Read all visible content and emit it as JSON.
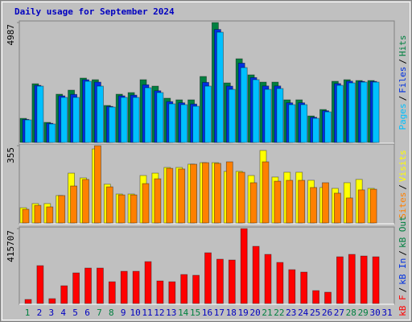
{
  "chart_data": {
    "type": "bar",
    "title": "Daily usage for September 2024",
    "categories": [
      "1",
      "2",
      "3",
      "4",
      "5",
      "6",
      "7",
      "8",
      "9",
      "10",
      "11",
      "12",
      "13",
      "14",
      "15",
      "16",
      "17",
      "18",
      "19",
      "20",
      "21",
      "22",
      "23",
      "24",
      "25",
      "26",
      "27",
      "28",
      "29",
      "30",
      "31"
    ],
    "category_colors": [
      "#008040",
      "#0000c0",
      "#0000c0",
      "#0000c0",
      "#0000c0",
      "#0000c0",
      "#008040",
      "#008040",
      "#0000c0",
      "#0000c0",
      "#0000c0",
      "#0000c0",
      "#0000c0",
      "#008040",
      "#008040",
      "#0000c0",
      "#0000c0",
      "#0000c0",
      "#0000c0",
      "#0000c0",
      "#008040",
      "#008040",
      "#0000c0",
      "#0000c0",
      "#0000c0",
      "#0000c0",
      "#0000c0",
      "#008040",
      "#008040",
      "#0000c0",
      "#0000c0"
    ],
    "legend_separator": "/",
    "panels": [
      {
        "ylim": [
          0,
          4987
        ],
        "yticks": [
          4987
        ],
        "series": [
          {
            "name": "Pages",
            "color": "#00c0ff",
            "values": [
              938,
              2343,
              770,
              1874,
              1874,
              2544,
              2343,
              1473,
              1874,
              1874,
              2276,
              2075,
              1607,
              1573,
              1506,
              2343,
              4585,
              2209,
              3113,
              2611,
              2209,
              2243,
              1573,
              1573,
              1004,
              1272,
              2376,
              2477,
              2510,
              2510,
              null
            ]
          },
          {
            "name": "Files",
            "color": "#0030e0",
            "values": [
              960,
              2376,
              800,
              1941,
              2000,
              2611,
              2510,
              1500,
              1941,
              1970,
              2400,
              2150,
              1700,
              1650,
              1600,
              2500,
              4700,
              2343,
              3300,
              2700,
              2350,
              2350,
              1650,
              1650,
              1050,
              1320,
              2450,
              2550,
              2540,
              2540,
              null
            ]
          },
          {
            "name": "Hits",
            "color": "#008040",
            "values": [
              1004,
              2443,
              837,
              2008,
              2176,
              2678,
              2611,
              1540,
              2008,
              2075,
              2611,
              2343,
              1841,
              1774,
              1774,
              2745,
              4987,
              2477,
              3481,
              2812,
              2510,
              2510,
              1774,
              1774,
              1104,
              1372,
              2544,
              2611,
              2577,
              2577,
              null
            ]
          }
        ]
      },
      {
        "ylim": [
          0,
          355
        ],
        "yticks": [
          355
        ],
        "series": [
          {
            "name": "Sites",
            "color": "#ff8000",
            "values": [
              63,
              81,
              74,
              126,
              170,
              200,
              355,
              166,
              129,
              129,
              181,
              203,
              251,
              248,
              270,
              277,
              274,
              281,
              233,
              185,
              281,
              192,
              196,
              196,
              163,
              185,
              137,
              115,
              152,
              155,
              null
            ]
          },
          {
            "name": "Visits",
            "color": "#ffff00",
            "values": [
              70,
              89,
              89,
              126,
              229,
              207,
              340,
              178,
              133,
              133,
              218,
              229,
              255,
              255,
              270,
              277,
              277,
              237,
              237,
              218,
              333,
              211,
              233,
              233,
              196,
              163,
              159,
              185,
              200,
              159,
              null
            ]
          }
        ]
      },
      {
        "ylim": [
          0,
          415707
        ],
        "yticks": [
          415707
        ],
        "series": [
          {
            "name": "kB F",
            "color": "#ff0000",
            "values": [
              22350,
              210100,
              26820,
              98350,
              169880,
              196700,
              196700,
              120700,
              178800,
              178800,
              232400,
              125200,
              120700,
              160900,
              156500,
              281600,
              245900,
              241400,
              415707,
              317400,
              272600,
              228000,
              187800,
              174300,
              71500,
              62600,
              259300,
              272600,
              263600,
              259300,
              null
            ]
          },
          {
            "name": "kB In",
            "color": "#0030e0",
            "values": [
              null,
              null,
              null,
              null,
              null,
              null,
              null,
              null,
              null,
              null,
              null,
              null,
              null,
              null,
              null,
              null,
              null,
              null,
              null,
              null,
              null,
              null,
              null,
              null,
              null,
              null,
              null,
              null,
              null,
              null,
              null
            ]
          },
          {
            "name": "kB Out",
            "color": "#008040",
            "values": [
              null,
              null,
              null,
              null,
              null,
              null,
              null,
              null,
              null,
              null,
              null,
              null,
              null,
              null,
              null,
              null,
              null,
              null,
              null,
              null,
              null,
              null,
              null,
              null,
              null,
              null,
              null,
              null,
              null,
              null,
              null
            ]
          }
        ]
      }
    ]
  }
}
